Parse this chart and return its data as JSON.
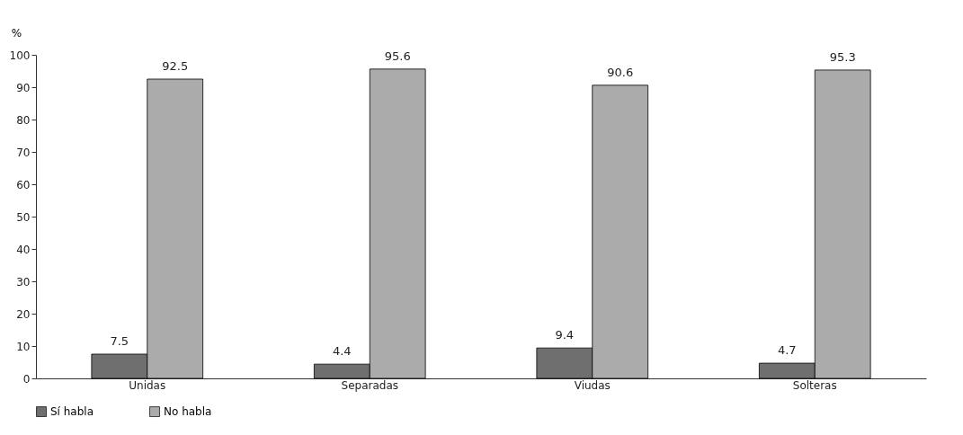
{
  "chart_data": {
    "type": "bar",
    "ylabel": "%",
    "categories": [
      "Unidas",
      "Separadas",
      "Viudas",
      "Solteras"
    ],
    "series": [
      {
        "name": "Sí habla",
        "color": "#6f6f6f",
        "values": [
          7.5,
          4.4,
          9.4,
          4.7
        ]
      },
      {
        "name": "No habla",
        "color": "#ababab",
        "values": [
          92.5,
          95.6,
          90.6,
          95.3
        ]
      }
    ],
    "ylim": [
      0,
      100
    ],
    "yticks": [
      0,
      10,
      20,
      30,
      40,
      50,
      60,
      70,
      80,
      90,
      100
    ],
    "grid": false,
    "legend": "bottom",
    "data_labels": true
  }
}
